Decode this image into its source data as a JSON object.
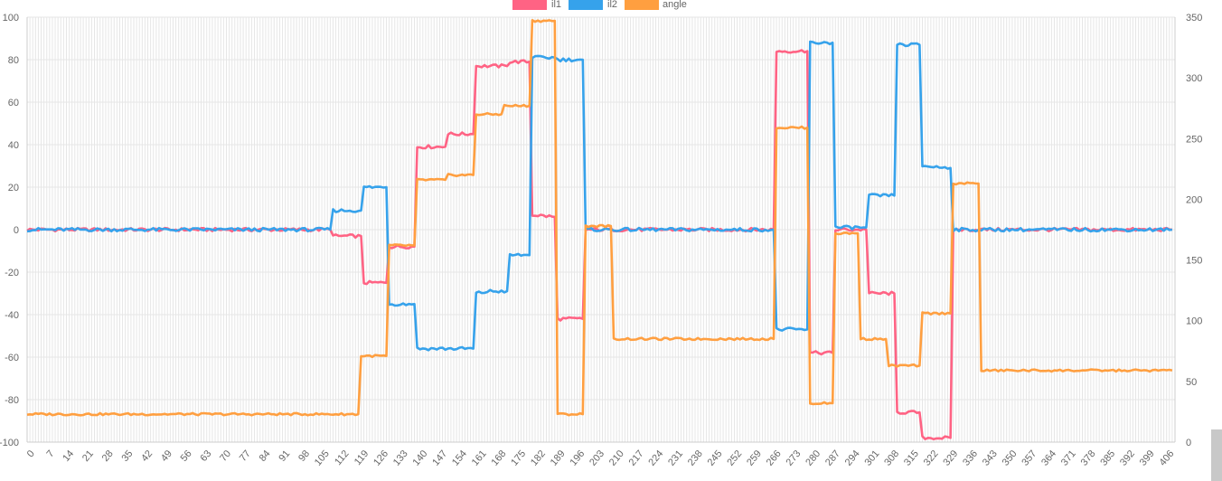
{
  "chart_data": {
    "type": "line",
    "title": "",
    "xlabel": "",
    "ylabel": "",
    "x_ticks": [
      "0",
      "7",
      "14",
      "21",
      "28",
      "35",
      "42",
      "49",
      "56",
      "63",
      "70",
      "77",
      "84",
      "91",
      "98",
      "105",
      "112",
      "119",
      "126",
      "133",
      "140",
      "147",
      "154",
      "161",
      "168",
      "175",
      "182",
      "189",
      "196",
      "203",
      "210",
      "217",
      "224",
      "231",
      "238",
      "245",
      "252",
      "259",
      "266",
      "273",
      "280",
      "287",
      "294",
      "301",
      "308",
      "315",
      "322",
      "329",
      "336",
      "343",
      "350",
      "357",
      "364",
      "371",
      "378",
      "385",
      "392",
      "399",
      "406"
    ],
    "x_range": [
      0,
      409
    ],
    "y_left": {
      "range": [
        -100,
        100
      ],
      "ticks": [
        "-100",
        "-80",
        "-60",
        "-40",
        "-20",
        "0",
        "20",
        "40",
        "60",
        "80",
        "100"
      ]
    },
    "y_right": {
      "range": [
        0,
        350
      ],
      "ticks": [
        "0",
        "50",
        "100",
        "150",
        "200",
        "250",
        "300",
        "350"
      ]
    },
    "grid": true,
    "legend_position": "top",
    "series": [
      {
        "name": "il1",
        "color": "#ff6384",
        "axis": "left",
        "segments": [
          [
            0,
            0
          ],
          [
            108,
            0
          ],
          [
            109,
            -3
          ],
          [
            119,
            -3
          ],
          [
            120,
            -25
          ],
          [
            128,
            -25
          ],
          [
            129,
            -8
          ],
          [
            138,
            -8
          ],
          [
            139,
            39
          ],
          [
            149,
            39
          ],
          [
            150,
            45
          ],
          [
            159,
            45
          ],
          [
            160,
            77
          ],
          [
            171,
            77
          ],
          [
            172,
            79
          ],
          [
            179,
            79
          ],
          [
            180,
            7
          ],
          [
            188,
            6
          ],
          [
            189,
            -42
          ],
          [
            198,
            -42
          ],
          [
            199,
            0
          ],
          [
            266,
            0
          ],
          [
            267,
            84
          ],
          [
            278,
            84
          ],
          [
            279,
            -58
          ],
          [
            287,
            -58
          ],
          [
            288,
            0
          ],
          [
            299,
            0
          ],
          [
            300,
            -30
          ],
          [
            309,
            -30
          ],
          [
            310,
            -86
          ],
          [
            318,
            -86
          ],
          [
            319,
            -98
          ],
          [
            329,
            -98
          ],
          [
            330,
            0
          ],
          [
            408,
            0
          ]
        ]
      },
      {
        "name": "il2",
        "color": "#36a2eb",
        "axis": "left",
        "segments": [
          [
            0,
            0
          ],
          [
            108,
            0
          ],
          [
            109,
            9
          ],
          [
            119,
            9
          ],
          [
            120,
            20
          ],
          [
            128,
            20
          ],
          [
            129,
            -35
          ],
          [
            138,
            -35
          ],
          [
            139,
            -56
          ],
          [
            159,
            -56
          ],
          [
            160,
            -30
          ],
          [
            165,
            -29
          ],
          [
            171,
            -29
          ],
          [
            172,
            -12
          ],
          [
            179,
            -12
          ],
          [
            180,
            81
          ],
          [
            188,
            81
          ],
          [
            189,
            80
          ],
          [
            198,
            80
          ],
          [
            199,
            0
          ],
          [
            266,
            0
          ],
          [
            267,
            -47
          ],
          [
            278,
            -47
          ],
          [
            279,
            88
          ],
          [
            287,
            88
          ],
          [
            288,
            1
          ],
          [
            299,
            1
          ],
          [
            300,
            16
          ],
          [
            309,
            16
          ],
          [
            310,
            87
          ],
          [
            318,
            87
          ],
          [
            319,
            30
          ],
          [
            329,
            29
          ],
          [
            330,
            0
          ],
          [
            408,
            0
          ]
        ]
      },
      {
        "name": "angle",
        "color": "#ff9f40",
        "axis": "right",
        "segments": [
          [
            0,
            23
          ],
          [
            118,
            23
          ],
          [
            119,
            71
          ],
          [
            128,
            71
          ],
          [
            129,
            162
          ],
          [
            138,
            162
          ],
          [
            139,
            216
          ],
          [
            149,
            216
          ],
          [
            150,
            220
          ],
          [
            159,
            220
          ],
          [
            160,
            270
          ],
          [
            169,
            270
          ],
          [
            170,
            277
          ],
          [
            179,
            277
          ],
          [
            180,
            347
          ],
          [
            188,
            347
          ],
          [
            189,
            23
          ],
          [
            198,
            23
          ],
          [
            199,
            178
          ],
          [
            208,
            178
          ],
          [
            209,
            85
          ],
          [
            266,
            85
          ],
          [
            267,
            259
          ],
          [
            278,
            259
          ],
          [
            279,
            32
          ],
          [
            287,
            32
          ],
          [
            288,
            172
          ],
          [
            296,
            172
          ],
          [
            297,
            85
          ],
          [
            306,
            85
          ],
          [
            307,
            63
          ],
          [
            318,
            63
          ],
          [
            319,
            106
          ],
          [
            329,
            106
          ],
          [
            330,
            213
          ],
          [
            339,
            213
          ],
          [
            340,
            59
          ],
          [
            408,
            59
          ]
        ]
      }
    ]
  }
}
